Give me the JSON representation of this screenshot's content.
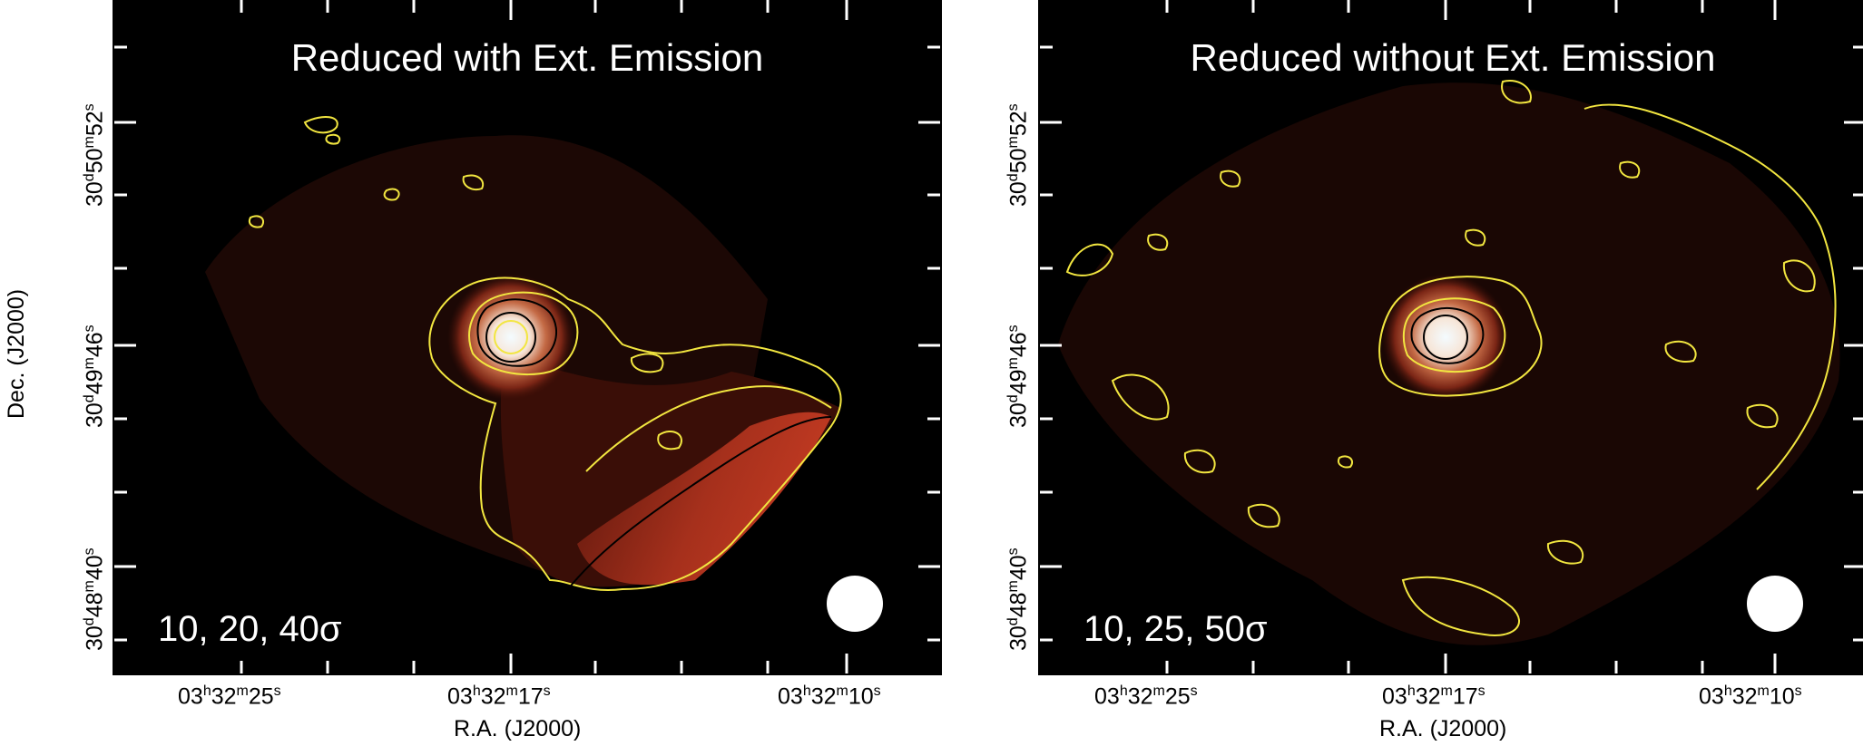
{
  "axes": {
    "y_title": "Dec. (J2000)",
    "x_title": "R.A. (J2000)"
  },
  "ra_ticks": [
    {
      "h": "03",
      "m": "32",
      "s": "25"
    },
    {
      "h": "03",
      "m": "32",
      "s": "17"
    },
    {
      "h": "03",
      "m": "32",
      "s": "10"
    }
  ],
  "dec_ticks": [
    {
      "d": "30",
      "m": "50",
      "s": "52"
    },
    {
      "d": "30",
      "m": "49",
      "s": "46"
    },
    {
      "d": "30",
      "m": "48",
      "s": "40"
    }
  ],
  "panels": [
    {
      "title": "Reduced with Ext. Emission",
      "levels": "10, 20, 40σ"
    },
    {
      "title": "Reduced without Ext. Emission",
      "levels": "10, 25, 50σ"
    }
  ],
  "colors": {
    "contour_outer": "#f2e640",
    "contour_inner": "#000000",
    "emission_red": "#b8301c",
    "background": "#000000",
    "beam": "#ffffff"
  },
  "icons": {
    "beam": "beam-ellipse"
  }
}
